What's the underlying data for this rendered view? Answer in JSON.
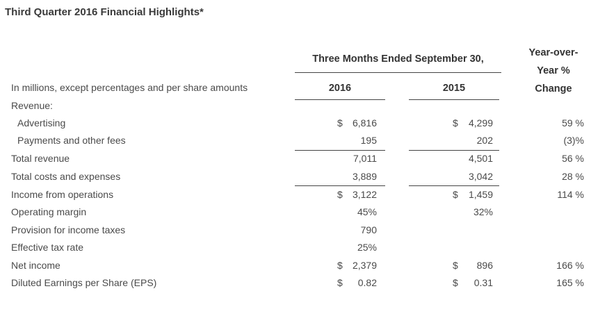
{
  "title": "Third Quarter 2016 Financial Highlights*",
  "header": {
    "period_label": "Three Months Ended September 30,",
    "yoy_line1": "Year-over-",
    "yoy_line2": "Year %",
    "yoy_line3": "Change",
    "col_2016": "2016",
    "col_2015": "2015",
    "units_label": "In millions, except percentages and per share amounts"
  },
  "rows": [
    {
      "label": "Revenue:",
      "cur16": "",
      "v16": "",
      "cur15": "",
      "v15": "",
      "yoy": ""
    },
    {
      "label": "Advertising",
      "cur16": "$",
      "v16": "6,816",
      "cur15": "$",
      "v15": "4,299",
      "yoy": "59 %"
    },
    {
      "label": "Payments and other fees",
      "cur16": "",
      "v16": "195",
      "cur15": "",
      "v15": "202",
      "yoy": "(3)%"
    },
    {
      "label": "Total revenue",
      "cur16": "",
      "v16": "7,011",
      "cur15": "",
      "v15": "4,501",
      "yoy": "56 %"
    },
    {
      "label": "Total costs and expenses",
      "cur16": "",
      "v16": "3,889",
      "cur15": "",
      "v15": "3,042",
      "yoy": "28 %"
    },
    {
      "label": "Income from operations",
      "cur16": "$",
      "v16": "3,122",
      "cur15": "$",
      "v15": "1,459",
      "yoy": "114 %"
    },
    {
      "label": "Operating margin",
      "cur16": "",
      "v16": "45%",
      "cur15": "",
      "v15": "32%",
      "yoy": ""
    },
    {
      "label": "Provision for income taxes",
      "cur16": "",
      "v16": "790",
      "cur15": "",
      "v15": "",
      "yoy": ""
    },
    {
      "label": "Effective tax rate",
      "cur16": "",
      "v16": "25%",
      "cur15": "",
      "v15": "",
      "yoy": ""
    },
    {
      "label": "Net income",
      "cur16": "$",
      "v16": "2,379",
      "cur15": "$",
      "v15": "896",
      "yoy": "166 %"
    },
    {
      "label": "Diluted Earnings per Share (EPS)",
      "cur16": "$",
      "v16": "0.82",
      "cur15": "$",
      "v15": "0.31",
      "yoy": "165 %"
    }
  ]
}
